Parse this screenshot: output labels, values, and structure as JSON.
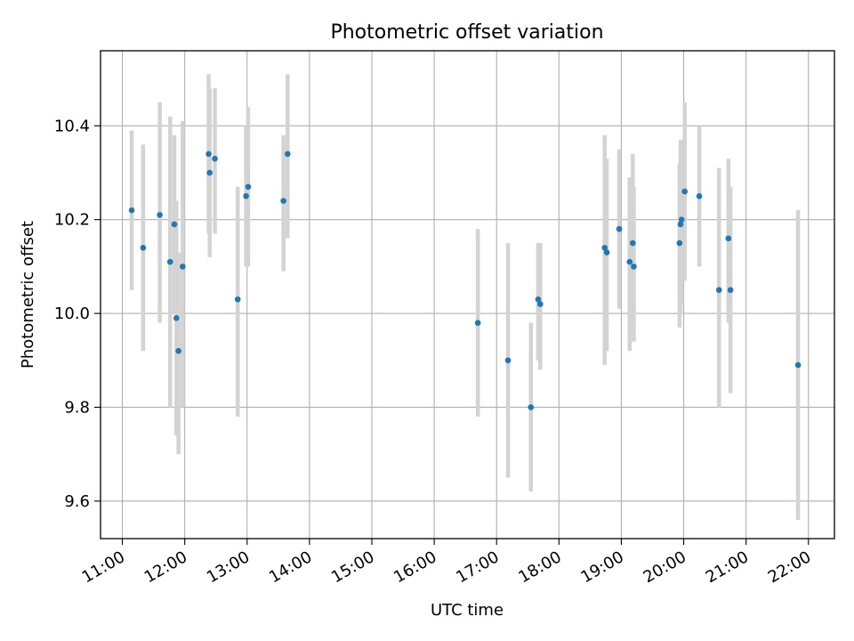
{
  "chart_data": {
    "type": "scatter",
    "title": "Photometric offset variation",
    "xlabel": "UTC time",
    "ylabel": "Photometric offset",
    "x_ticks": [
      "11:00",
      "12:00",
      "13:00",
      "14:00",
      "15:00",
      "16:00",
      "17:00",
      "18:00",
      "19:00",
      "20:00",
      "21:00",
      "22:00"
    ],
    "y_ticks": [
      "9.6",
      "9.8",
      "10.0",
      "10.2",
      "10.4"
    ],
    "xlim": [
      "10:39",
      "22:25"
    ],
    "ylim": [
      9.52,
      10.56
    ],
    "grid": true,
    "point_color": "#1f77b4",
    "errorbar_color": "#d3d3d3",
    "points": [
      {
        "x": "11:09",
        "y": 10.22,
        "lo": 10.05,
        "hi": 10.39
      },
      {
        "x": "11:20",
        "y": 10.14,
        "lo": 9.92,
        "hi": 10.36
      },
      {
        "x": "11:36",
        "y": 10.21,
        "lo": 9.98,
        "hi": 10.45
      },
      {
        "x": "11:46",
        "y": 10.11,
        "lo": 9.8,
        "hi": 10.42
      },
      {
        "x": "11:50",
        "y": 10.19,
        "lo": 10.0,
        "hi": 10.38
      },
      {
        "x": "11:52",
        "y": 9.99,
        "lo": 9.74,
        "hi": 10.24
      },
      {
        "x": "11:54",
        "y": 9.92,
        "lo": 9.7,
        "hi": 10.13
      },
      {
        "x": "11:58",
        "y": 10.1,
        "lo": 9.8,
        "hi": 10.41
      },
      {
        "x": "12:23",
        "y": 10.34,
        "lo": 10.17,
        "hi": 10.51
      },
      {
        "x": "12:24",
        "y": 10.3,
        "lo": 10.12,
        "hi": 10.48
      },
      {
        "x": "12:29",
        "y": 10.33,
        "lo": 10.17,
        "hi": 10.48
      },
      {
        "x": "12:51",
        "y": 10.03,
        "lo": 9.78,
        "hi": 10.27
      },
      {
        "x": "12:59",
        "y": 10.25,
        "lo": 10.1,
        "hi": 10.4
      },
      {
        "x": "13:01",
        "y": 10.27,
        "lo": 10.1,
        "hi": 10.44
      },
      {
        "x": "13:35",
        "y": 10.24,
        "lo": 10.09,
        "hi": 10.38
      },
      {
        "x": "13:39",
        "y": 10.34,
        "lo": 10.16,
        "hi": 10.51
      },
      {
        "x": "16:42",
        "y": 9.98,
        "lo": 9.78,
        "hi": 10.18
      },
      {
        "x": "17:11",
        "y": 9.9,
        "lo": 9.65,
        "hi": 10.15
      },
      {
        "x": "17:33",
        "y": 9.8,
        "lo": 9.62,
        "hi": 9.98
      },
      {
        "x": "17:40",
        "y": 10.03,
        "lo": 9.9,
        "hi": 10.15
      },
      {
        "x": "17:42",
        "y": 10.02,
        "lo": 9.88,
        "hi": 10.15
      },
      {
        "x": "18:44",
        "y": 10.14,
        "lo": 9.89,
        "hi": 10.38
      },
      {
        "x": "18:46",
        "y": 10.13,
        "lo": 9.92,
        "hi": 10.33
      },
      {
        "x": "18:58",
        "y": 10.18,
        "lo": 10.01,
        "hi": 10.35
      },
      {
        "x": "19:08",
        "y": 10.11,
        "lo": 9.92,
        "hi": 10.29
      },
      {
        "x": "19:11",
        "y": 10.15,
        "lo": 9.96,
        "hi": 10.34
      },
      {
        "x": "19:12",
        "y": 10.1,
        "lo": 9.94,
        "hi": 10.27
      },
      {
        "x": "19:56",
        "y": 10.15,
        "lo": 9.97,
        "hi": 10.32
      },
      {
        "x": "19:57",
        "y": 10.19,
        "lo": 10.0,
        "hi": 10.37
      },
      {
        "x": "19:58",
        "y": 10.2,
        "lo": 10.02,
        "hi": 10.37
      },
      {
        "x": "20:01",
        "y": 10.26,
        "lo": 10.07,
        "hi": 10.45
      },
      {
        "x": "20:15",
        "y": 10.25,
        "lo": 10.1,
        "hi": 10.4
      },
      {
        "x": "20:34",
        "y": 10.05,
        "lo": 9.8,
        "hi": 10.31
      },
      {
        "x": "20:43",
        "y": 10.16,
        "lo": 9.98,
        "hi": 10.33
      },
      {
        "x": "20:45",
        "y": 10.05,
        "lo": 9.83,
        "hi": 10.27
      },
      {
        "x": "21:50",
        "y": 9.89,
        "lo": 9.56,
        "hi": 10.22
      }
    ]
  }
}
